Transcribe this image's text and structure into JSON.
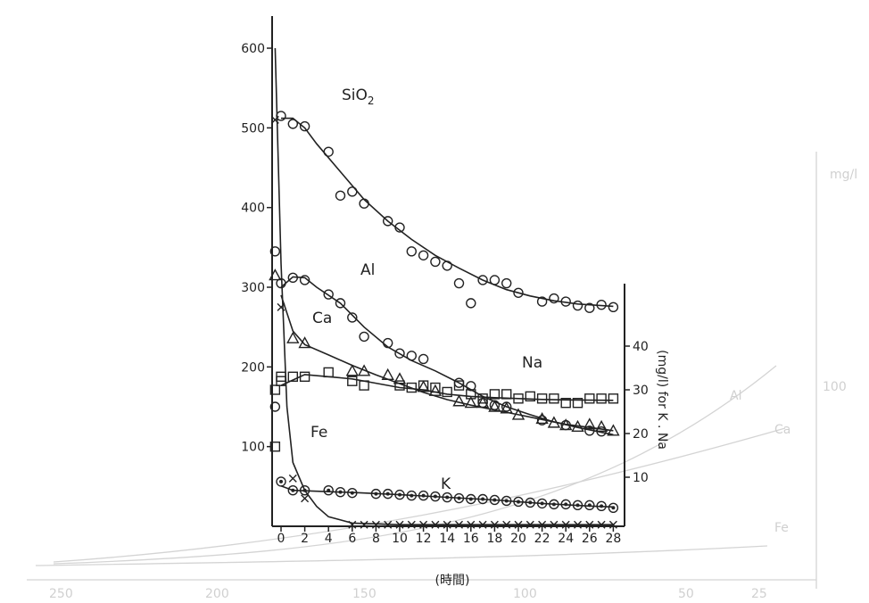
{
  "chart_data": {
    "type": "scatter",
    "xlabel": "(時間)",
    "xlim": [
      0,
      28
    ],
    "x_ticks": [
      "0",
      "2",
      "4",
      "6",
      "8",
      "10",
      "12",
      "14",
      "16",
      "18",
      "20",
      "22",
      "24",
      "26",
      "28"
    ],
    "y_left": {
      "ylim": [
        0,
        600
      ],
      "ticks": [
        "100",
        "200",
        "300",
        "400",
        "500",
        "600"
      ]
    },
    "y_right": {
      "label": "(mg/l) for K . Na",
      "ylim": [
        0,
        70
      ],
      "ticks": [
        "10",
        "20",
        "30",
        "40"
      ]
    },
    "series": [
      {
        "name": "SiO2",
        "axis": "left",
        "marker": "circle",
        "points": [
          [
            -0.5,
            345
          ],
          [
            0,
            515
          ],
          [
            1,
            505
          ],
          [
            2,
            502
          ],
          [
            4,
            470
          ],
          [
            5,
            415
          ],
          [
            6,
            420
          ],
          [
            7,
            405
          ],
          [
            9,
            383
          ],
          [
            10,
            375
          ],
          [
            11,
            345
          ],
          [
            12,
            340
          ],
          [
            13,
            332
          ],
          [
            14,
            327
          ],
          [
            15,
            305
          ],
          [
            16,
            280
          ],
          [
            17,
            309
          ],
          [
            18,
            309
          ],
          [
            19,
            305
          ],
          [
            20,
            293
          ],
          [
            22,
            282
          ],
          [
            23,
            286
          ],
          [
            24,
            282
          ],
          [
            25,
            277
          ],
          [
            26,
            274
          ],
          [
            27,
            278
          ],
          [
            28,
            275
          ]
        ],
        "curve": [
          [
            0,
            512
          ],
          [
            1,
            512
          ],
          [
            2,
            500
          ],
          [
            3,
            480
          ],
          [
            5,
            445
          ],
          [
            7,
            410
          ],
          [
            9,
            383
          ],
          [
            11,
            360
          ],
          [
            13,
            340
          ],
          [
            15,
            324
          ],
          [
            17,
            309
          ],
          [
            19,
            297
          ],
          [
            21,
            289
          ],
          [
            23,
            283
          ],
          [
            25,
            279
          ],
          [
            28,
            276
          ]
        ]
      },
      {
        "name": "Al",
        "axis": "left",
        "marker": "circle",
        "points": [
          [
            -0.5,
            150
          ],
          [
            0,
            305
          ],
          [
            1,
            312
          ],
          [
            2,
            309
          ],
          [
            4,
            291
          ],
          [
            5,
            280
          ],
          [
            6,
            262
          ],
          [
            7,
            238
          ],
          [
            9,
            230
          ],
          [
            10,
            217
          ],
          [
            11,
            214
          ],
          [
            12,
            210
          ],
          [
            15,
            180
          ],
          [
            16,
            176
          ],
          [
            17,
            155
          ],
          [
            18,
            152
          ],
          [
            19,
            150
          ],
          [
            22,
            133
          ],
          [
            24,
            127
          ],
          [
            26,
            120
          ],
          [
            27,
            119
          ]
        ],
        "curve": [
          [
            0,
            300
          ],
          [
            1,
            313
          ],
          [
            2,
            312
          ],
          [
            3,
            300
          ],
          [
            5,
            280
          ],
          [
            7,
            250
          ],
          [
            9,
            225
          ],
          [
            11,
            208
          ],
          [
            13,
            195
          ],
          [
            15,
            180
          ],
          [
            17,
            163
          ],
          [
            19,
            150
          ],
          [
            21,
            140
          ],
          [
            23,
            131
          ],
          [
            25,
            124
          ],
          [
            28,
            115
          ]
        ]
      },
      {
        "name": "Ca",
        "axis": "left",
        "marker": "triangle",
        "points": [
          [
            -0.5,
            315
          ],
          [
            1,
            236
          ],
          [
            2,
            230
          ],
          [
            6,
            195
          ],
          [
            7,
            195
          ],
          [
            9,
            190
          ],
          [
            10,
            185
          ],
          [
            12,
            175
          ],
          [
            13,
            170
          ],
          [
            15,
            157
          ],
          [
            16,
            155
          ],
          [
            17,
            155
          ],
          [
            18,
            150
          ],
          [
            19,
            148
          ],
          [
            20,
            140
          ],
          [
            22,
            135
          ],
          [
            23,
            130
          ],
          [
            24,
            127
          ],
          [
            25,
            125
          ],
          [
            26,
            128
          ],
          [
            27,
            125
          ],
          [
            28,
            120
          ]
        ],
        "curve": [
          [
            0,
            290
          ],
          [
            1,
            245
          ],
          [
            2,
            228
          ],
          [
            4,
            215
          ],
          [
            6,
            202
          ],
          [
            8,
            190
          ],
          [
            10,
            179
          ],
          [
            12,
            168
          ],
          [
            14,
            159
          ],
          [
            16,
            152
          ],
          [
            18,
            146
          ],
          [
            20,
            140
          ],
          [
            22,
            134
          ],
          [
            24,
            128
          ],
          [
            26,
            124
          ],
          [
            28,
            120
          ]
        ]
      },
      {
        "name": "Na",
        "axis": "right",
        "marker": "square",
        "points": [
          [
            -0.5,
            17
          ],
          [
            -0.5,
            30
          ],
          [
            0,
            32
          ],
          [
            0,
            33
          ],
          [
            1,
            33
          ],
          [
            2,
            33
          ],
          [
            4,
            34
          ],
          [
            6,
            32
          ],
          [
            7,
            31
          ],
          [
            10,
            31
          ],
          [
            11,
            30.5
          ],
          [
            12,
            31
          ],
          [
            13,
            30.5
          ],
          [
            14,
            29.5
          ],
          [
            15,
            31
          ],
          [
            16,
            29
          ],
          [
            17,
            28
          ],
          [
            18,
            29
          ],
          [
            19,
            29
          ],
          [
            20,
            28
          ],
          [
            21,
            28.5
          ],
          [
            22,
            28
          ],
          [
            23,
            28
          ],
          [
            24,
            27
          ],
          [
            25,
            27
          ],
          [
            26,
            28
          ],
          [
            27,
            28
          ],
          [
            28,
            28
          ]
        ],
        "curve": [
          [
            0,
            31
          ],
          [
            2,
            33.5
          ],
          [
            4,
            33
          ],
          [
            6,
            32.5
          ],
          [
            8,
            31.5
          ],
          [
            10,
            30.5
          ],
          [
            12,
            30
          ],
          [
            14,
            29
          ],
          [
            16,
            28.5
          ],
          [
            18,
            28.2
          ],
          [
            20,
            28
          ],
          [
            22,
            27.8
          ],
          [
            24,
            27.7
          ],
          [
            28,
            27.6
          ]
        ]
      },
      {
        "name": "K",
        "axis": "right",
        "marker": "circle-dot",
        "points": [
          [
            0,
            9
          ],
          [
            1,
            7
          ],
          [
            2,
            7
          ],
          [
            4,
            7
          ],
          [
            5,
            6.6
          ],
          [
            6,
            6.4
          ],
          [
            8,
            6.2
          ],
          [
            9,
            6.2
          ],
          [
            10,
            6
          ],
          [
            11,
            5.8
          ],
          [
            12,
            5.8
          ],
          [
            13,
            5.6
          ],
          [
            14,
            5.4
          ],
          [
            15,
            5.2
          ],
          [
            16,
            5
          ],
          [
            17,
            5
          ],
          [
            18,
            4.8
          ],
          [
            19,
            4.6
          ],
          [
            20,
            4.4
          ],
          [
            21,
            4.2
          ],
          [
            22,
            4
          ],
          [
            23,
            3.8
          ],
          [
            24,
            3.8
          ],
          [
            25,
            3.6
          ],
          [
            26,
            3.6
          ],
          [
            27,
            3.4
          ],
          [
            28,
            3
          ]
        ],
        "curve": [
          [
            0,
            8
          ],
          [
            1,
            7
          ],
          [
            3,
            6.8
          ],
          [
            6,
            6.5
          ],
          [
            10,
            6
          ],
          [
            14,
            5.4
          ],
          [
            18,
            4.8
          ],
          [
            22,
            4
          ],
          [
            26,
            3.4
          ],
          [
            28,
            3.2
          ]
        ]
      },
      {
        "name": "Fe",
        "axis": "left",
        "marker": "x",
        "points": [
          [
            -0.5,
            510
          ],
          [
            0,
            275
          ],
          [
            1,
            60
          ],
          [
            2,
            35
          ],
          [
            6,
            2
          ],
          [
            7,
            2
          ],
          [
            8,
            2
          ],
          [
            9,
            2
          ],
          [
            10,
            2
          ],
          [
            11,
            2
          ],
          [
            12,
            2
          ],
          [
            13,
            2
          ],
          [
            14,
            2
          ],
          [
            15,
            2
          ],
          [
            16,
            2
          ],
          [
            17,
            2
          ],
          [
            18,
            2
          ],
          [
            19,
            2
          ],
          [
            20,
            2
          ],
          [
            21,
            2
          ],
          [
            22,
            2
          ],
          [
            23,
            2
          ],
          [
            24,
            2
          ],
          [
            25,
            2
          ],
          [
            26,
            2
          ],
          [
            27,
            2
          ],
          [
            28,
            2
          ]
        ],
        "curve": [
          [
            -0.5,
            600
          ],
          [
            0,
            330
          ],
          [
            0.5,
            150
          ],
          [
            1,
            80
          ],
          [
            2,
            45
          ],
          [
            3,
            25
          ],
          [
            4,
            12
          ],
          [
            6,
            4
          ],
          [
            10,
            2
          ],
          [
            28,
            2
          ]
        ]
      }
    ],
    "labels": [
      {
        "text": "SiO",
        "sub": "2",
        "series": "SiO2"
      },
      {
        "text": "Al",
        "series": "Al"
      },
      {
        "text": "Ca",
        "series": "Ca"
      },
      {
        "text": "Na",
        "series": "Na"
      },
      {
        "text": "Fe",
        "series": "Fe"
      },
      {
        "text": "K",
        "series": "K"
      }
    ],
    "background_ghost": {
      "labels": [
        "mg/l",
        "100",
        "Al",
        "Ca",
        "Fe"
      ],
      "x_ticks": [
        "250",
        "200",
        "150",
        "100",
        "50",
        "25"
      ]
    }
  }
}
